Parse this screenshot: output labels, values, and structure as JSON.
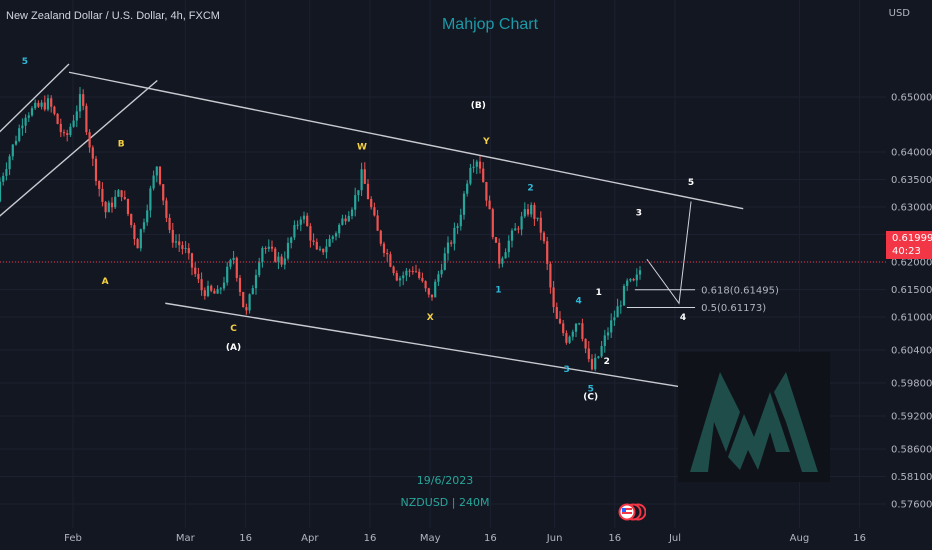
{
  "header": {
    "instrument": "New Zealand Dollar / U.S. Dollar, 4h, FXCM",
    "brand": "Mahjop Chart",
    "currency": "USD"
  },
  "price_badge": {
    "price": "0.61999",
    "countdown": "40:23"
  },
  "footer": {
    "date": "19/6/2023",
    "symbol": "NZDUSD | 240M"
  },
  "colors": {
    "background": "#131722",
    "bull": "#26a69a",
    "bear": "#ef5350",
    "wave_yellow": "#f5d142",
    "wave_cyan": "#2fb8d8",
    "wave_white": "#ffffff",
    "channel": "#c8cad0",
    "current_price": "#f23645",
    "logo": "#1f4d4a"
  },
  "chart_data": {
    "type": "candlestick",
    "y_ticks": [
      "0.65000",
      "0.64000",
      "0.63500",
      "0.63000",
      "0.62500",
      "0.62000",
      "0.61500",
      "0.61000",
      "0.60400",
      "0.59800",
      "0.59200",
      "0.58600",
      "0.58100",
      "0.57600"
    ],
    "x_ticks": [
      "Feb",
      "Mar",
      "16",
      "Apr",
      "16",
      "May",
      "16",
      "Jun",
      "16",
      "Jul",
      "Aug",
      "16"
    ],
    "ylim": [
      0.5735,
      0.658
    ],
    "price_path": [
      {
        "t": "01-12",
        "p": 0.631
      },
      {
        "t": "01-20",
        "p": 0.647
      },
      {
        "t": "01-26",
        "p": 0.649
      },
      {
        "t": "01-30",
        "p": 0.642
      },
      {
        "t": "02-03",
        "p": 0.65
      },
      {
        "t": "02-06",
        "p": 0.638
      },
      {
        "t": "02-09",
        "p": 0.629
      },
      {
        "t": "02-13",
        "p": 0.633
      },
      {
        "t": "02-17",
        "p": 0.623
      },
      {
        "t": "02-22",
        "p": 0.638
      },
      {
        "t": "02-25",
        "p": 0.625
      },
      {
        "t": "03-01",
        "p": 0.622
      },
      {
        "t": "03-05",
        "p": 0.615
      },
      {
        "t": "03-09",
        "p": 0.614
      },
      {
        "t": "03-13",
        "p": 0.621
      },
      {
        "t": "03-16",
        "p": 0.61
      },
      {
        "t": "03-20",
        "p": 0.623
      },
      {
        "t": "03-25",
        "p": 0.62
      },
      {
        "t": "03-30",
        "p": 0.629
      },
      {
        "t": "04-03",
        "p": 0.621
      },
      {
        "t": "04-07",
        "p": 0.625
      },
      {
        "t": "04-12",
        "p": 0.631
      },
      {
        "t": "04-14",
        "p": 0.636
      },
      {
        "t": "04-18",
        "p": 0.625
      },
      {
        "t": "04-23",
        "p": 0.617
      },
      {
        "t": "04-27",
        "p": 0.619
      },
      {
        "t": "05-01",
        "p": 0.613
      },
      {
        "t": "05-04",
        "p": 0.62
      },
      {
        "t": "05-08",
        "p": 0.627
      },
      {
        "t": "05-11",
        "p": 0.638
      },
      {
        "t": "05-13",
        "p": 0.639
      },
      {
        "t": "05-15",
        "p": 0.632
      },
      {
        "t": "05-18",
        "p": 0.62
      },
      {
        "t": "05-20",
        "p": 0.623
      },
      {
        "t": "05-24",
        "p": 0.628
      },
      {
        "t": "05-26",
        "p": 0.63
      },
      {
        "t": "05-29",
        "p": 0.625
      },
      {
        "t": "06-01",
        "p": 0.61
      },
      {
        "t": "06-04",
        "p": 0.606
      },
      {
        "t": "06-07",
        "p": 0.61
      },
      {
        "t": "06-10",
        "p": 0.6
      },
      {
        "t": "06-12",
        "p": 0.603
      },
      {
        "t": "06-14",
        "p": 0.607
      },
      {
        "t": "06-17",
        "p": 0.612
      },
      {
        "t": "06-19",
        "p": 0.616
      },
      {
        "t": "06-21",
        "p": 0.616
      },
      {
        "t": "06-23",
        "p": 0.62
      }
    ],
    "wave_labels": [
      {
        "text": "5",
        "t": "01-20",
        "p": 0.656,
        "color": "wave_cyan"
      },
      {
        "text": "B",
        "t": "02-13",
        "p": 0.641,
        "color": "wave_yellow"
      },
      {
        "text": "A",
        "t": "02-09",
        "p": 0.616,
        "color": "wave_yellow"
      },
      {
        "text": "C",
        "t": "03-13",
        "p": 0.6075,
        "color": "wave_yellow"
      },
      {
        "text": "(A)",
        "t": "03-13",
        "p": 0.604,
        "color": "wave_white"
      },
      {
        "text": "W",
        "t": "04-14",
        "p": 0.6405,
        "color": "wave_yellow"
      },
      {
        "text": "X",
        "t": "05-01",
        "p": 0.6095,
        "color": "wave_yellow"
      },
      {
        "text": "(B)",
        "t": "05-13",
        "p": 0.648,
        "color": "wave_white"
      },
      {
        "text": "Y",
        "t": "05-15",
        "p": 0.6415,
        "color": "wave_yellow"
      },
      {
        "text": "1",
        "t": "05-18",
        "p": 0.6145,
        "color": "wave_cyan"
      },
      {
        "text": "2",
        "t": "05-26",
        "p": 0.633,
        "color": "wave_cyan"
      },
      {
        "text": "3",
        "t": "06-04",
        "p": 0.6,
        "color": "wave_cyan"
      },
      {
        "text": "4",
        "t": "06-07",
        "p": 0.6125,
        "color": "wave_cyan"
      },
      {
        "text": "5",
        "t": "06-10",
        "p": 0.5965,
        "color": "wave_cyan"
      },
      {
        "text": "(C)",
        "t": "06-10",
        "p": 0.595,
        "color": "wave_white"
      },
      {
        "text": "1",
        "t": "06-12",
        "p": 0.614,
        "color": "wave_white"
      },
      {
        "text": "2",
        "t": "06-14",
        "p": 0.6015,
        "color": "wave_white"
      },
      {
        "text": "3",
        "t": "06-22",
        "p": 0.6285,
        "color": "wave_white"
      },
      {
        "text": "4",
        "t": "07-03",
        "p": 0.6095,
        "color": "wave_white"
      },
      {
        "text": "5",
        "t": "07-05",
        "p": 0.634,
        "color": "wave_white"
      }
    ],
    "channel_lines": [
      {
        "from": {
          "t": "01-31",
          "p": 0.6545
        },
        "to": {
          "t": "07-18",
          "p": 0.6297
        }
      },
      {
        "from": {
          "t": "02-24",
          "p": 0.6125
        },
        "to": {
          "t": "07-16",
          "p": 0.5957
        }
      }
    ],
    "left_channel_lines": [
      {
        "from": {
          "t": "01-10",
          "p": 0.641
        },
        "to": {
          "t": "01-31",
          "p": 0.656
        }
      },
      {
        "from": {
          "t": "01-10",
          "p": 0.626
        },
        "to": {
          "t": "02-22",
          "p": 0.653
        }
      }
    ],
    "projection_path": [
      {
        "t": "06-24",
        "p": 0.6205
      },
      {
        "t": "07-02",
        "p": 0.6125
      },
      {
        "t": "07-05",
        "p": 0.631
      }
    ],
    "fib_levels": [
      {
        "label": "0.618(0.61495)",
        "value": 0.61495,
        "from": "06-21",
        "to": "07-06"
      },
      {
        "label": "0.5(0.61173)",
        "value": 0.61173,
        "from": "06-19",
        "to": "07-06"
      }
    ],
    "current_price": 0.61999
  }
}
